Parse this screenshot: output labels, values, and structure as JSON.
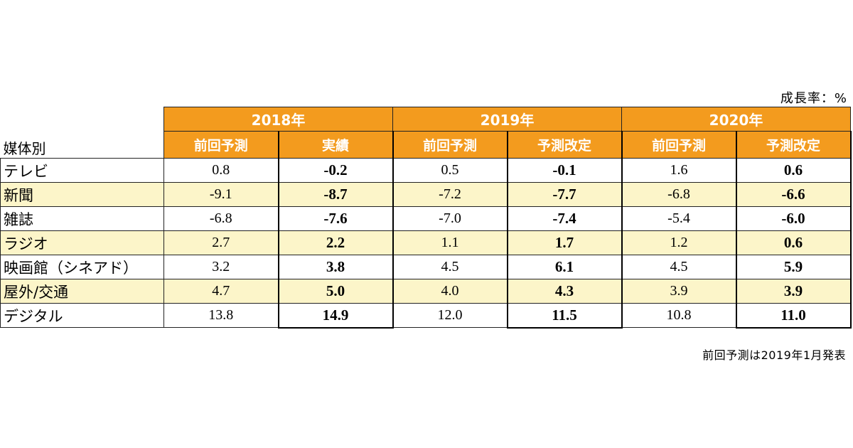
{
  "unit_note": "成長率：%",
  "source_note": "前回予測は2019年1月発表",
  "header": {
    "media_label": "媒体別",
    "years": [
      "2018年",
      "2019年",
      "2020年"
    ],
    "subcols": [
      "前回予測",
      "実績",
      "前回予測",
      "予測改定",
      "前回予測",
      "予測改定"
    ]
  },
  "rows": [
    {
      "media": "テレビ",
      "values": [
        "0.8",
        "-0.2",
        "0.5",
        "-0.1",
        "1.6",
        "0.6"
      ]
    },
    {
      "media": "新聞",
      "values": [
        "-9.1",
        "-8.7",
        "-7.2",
        "-7.7",
        "-6.8",
        "-6.6"
      ]
    },
    {
      "media": "雑誌",
      "values": [
        "-6.8",
        "-7.6",
        "-7.0",
        "-7.4",
        "-5.4",
        "-6.0"
      ]
    },
    {
      "media": "ラジオ",
      "values": [
        "2.7",
        "2.2",
        "1.1",
        "1.7",
        "1.2",
        "0.6"
      ]
    },
    {
      "media": "映画館（シネアド）",
      "values": [
        "3.2",
        "3.8",
        "4.5",
        "6.1",
        "4.5",
        "5.9"
      ]
    },
    {
      "media": "屋外/交通",
      "values": [
        "4.7",
        "5.0",
        "4.0",
        "4.3",
        "3.9",
        "3.9"
      ]
    },
    {
      "media": "デジタル",
      "values": [
        "13.8",
        "14.9",
        "12.0",
        "11.5",
        "10.8",
        "11.0"
      ]
    }
  ],
  "colors": {
    "header_bg": "#f39b1e",
    "header_text": "#ffffff",
    "alt_row": "#fcf5c9"
  }
}
